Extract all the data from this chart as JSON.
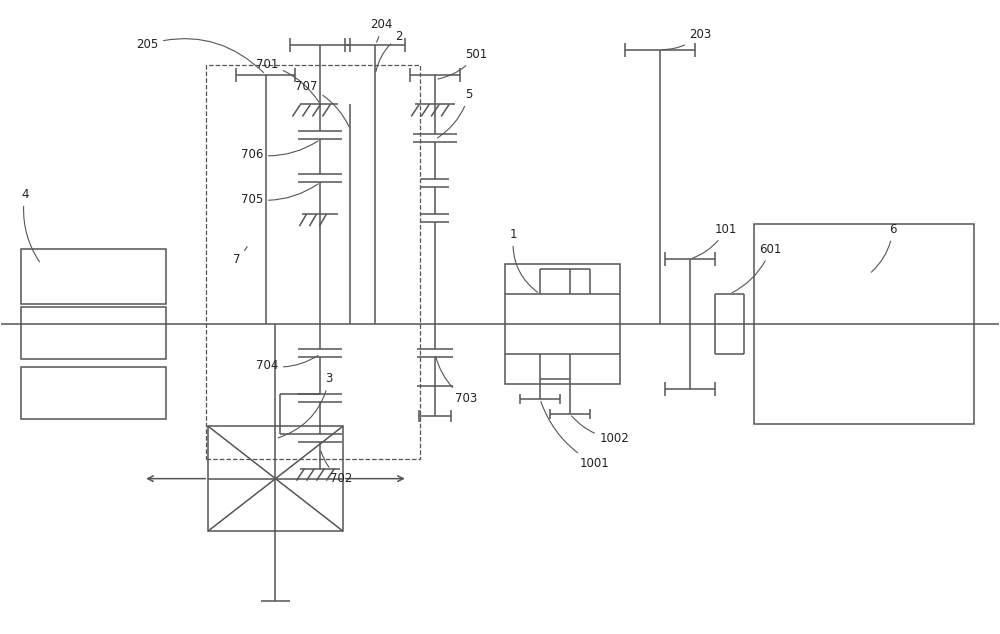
{
  "bg_color": "#ffffff",
  "line_color": "#555555",
  "lw": 1.1,
  "fig_width": 10.0,
  "fig_height": 6.34
}
